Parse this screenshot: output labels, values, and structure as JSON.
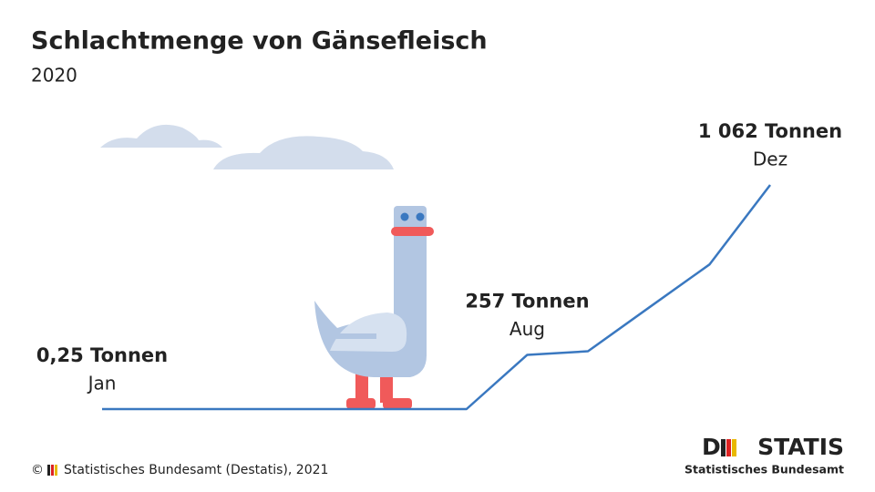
{
  "chart_data": {
    "type": "line",
    "title": "Schlachtmenge von Gänsefleisch",
    "subtitle": "2020",
    "categories": [
      "Jan",
      null,
      null,
      null,
      null,
      null,
      null,
      "Aug",
      null,
      null,
      null,
      "Dez"
    ],
    "series": [
      {
        "color": "#3a78c0",
        "values": [
          0.25,
          0,
          0,
          0,
          0,
          0,
          0,
          257,
          274,
          480,
          685,
          1062
        ],
        "value_labels": [
          "0,25 Tonnen",
          null,
          null,
          null,
          null,
          null,
          null,
          "257 Tonnen",
          null,
          null,
          null,
          "1 062 Tonnen"
        ]
      }
    ]
  },
  "footer": {
    "symbol": "©",
    "source": "Statistisches Bundesamt (Destatis), 2021"
  },
  "logo": {
    "left": "D",
    "right": "STATIS",
    "subtitle": "Statistisches Bundesamt"
  }
}
